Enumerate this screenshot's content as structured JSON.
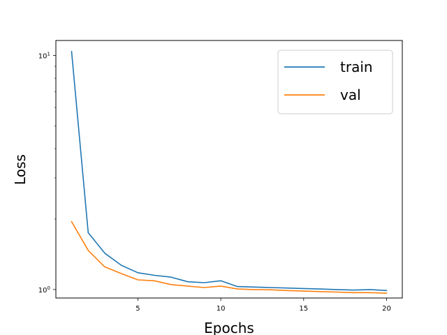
{
  "chart_data": {
    "type": "line",
    "title": "",
    "xlabel": "Epochs",
    "ylabel": "Loss",
    "y_scale": "log",
    "xlim": [
      0.05,
      20.95
    ],
    "ylim": [
      0.92,
      11.6
    ],
    "x_ticks": [
      {
        "value": 5,
        "label": "5"
      },
      {
        "value": 10,
        "label": "10"
      },
      {
        "value": 15,
        "label": "15"
      },
      {
        "value": 20,
        "label": "20"
      }
    ],
    "y_ticks": [
      {
        "value": 1,
        "base": "10",
        "exp": "0"
      },
      {
        "value": 10,
        "base": "10",
        "exp": "1"
      }
    ],
    "grid": false,
    "legend_position": "upper-right",
    "x": [
      1,
      2,
      3,
      4,
      5,
      6,
      7,
      8,
      9,
      10,
      11,
      12,
      13,
      14,
      15,
      16,
      17,
      18,
      19,
      20
    ],
    "series": [
      {
        "name": "train",
        "color": "#1f77b4",
        "values": [
          10.4,
          1.75,
          1.43,
          1.27,
          1.18,
          1.15,
          1.13,
          1.08,
          1.07,
          1.09,
          1.03,
          1.025,
          1.02,
          1.015,
          1.01,
          1.005,
          1.0,
          0.995,
          1.0,
          0.99
        ]
      },
      {
        "name": "val",
        "color": "#ff7f0e",
        "values": [
          1.95,
          1.47,
          1.25,
          1.17,
          1.1,
          1.09,
          1.05,
          1.035,
          1.02,
          1.035,
          1.005,
          1.0,
          0.998,
          0.99,
          0.985,
          0.98,
          0.975,
          0.97,
          0.97,
          0.965
        ]
      }
    ]
  }
}
